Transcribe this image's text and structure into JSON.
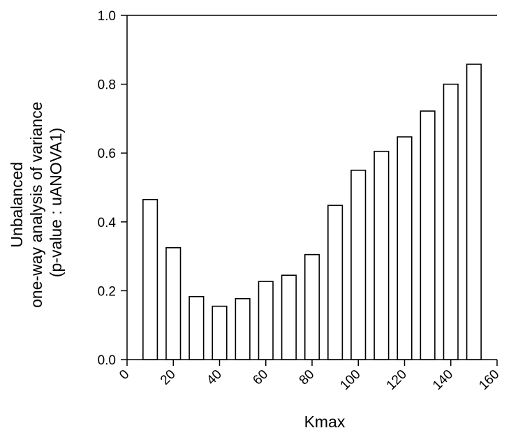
{
  "chart_data": {
    "type": "bar",
    "title": "",
    "xlabel": "Kmax",
    "ylabel_lines": [
      "Unbalanced",
      "one-way analysis of variance",
      "(p-value : uANOVA1)"
    ],
    "x": [
      10,
      20,
      30,
      40,
      50,
      60,
      70,
      80,
      90,
      100,
      110,
      120,
      130,
      140,
      150
    ],
    "values": [
      0.465,
      0.325,
      0.183,
      0.155,
      0.177,
      0.227,
      0.245,
      0.305,
      0.448,
      0.55,
      0.605,
      0.647,
      0.722,
      0.8,
      0.858
    ],
    "xlim": [
      0,
      160
    ],
    "ylim": [
      0.0,
      1.0
    ],
    "x_ticks": [
      0,
      20,
      40,
      60,
      80,
      100,
      120,
      140,
      160
    ],
    "y_ticks": [
      0.0,
      0.2,
      0.4,
      0.6,
      0.8,
      1.0
    ],
    "y_tick_labels": [
      "0.0",
      "0.2",
      "0.4",
      "0.6",
      "0.8",
      "1.0"
    ],
    "grid": false,
    "legend": "none",
    "bar_fill": "#ffffff",
    "bar_stroke": "#000000"
  }
}
